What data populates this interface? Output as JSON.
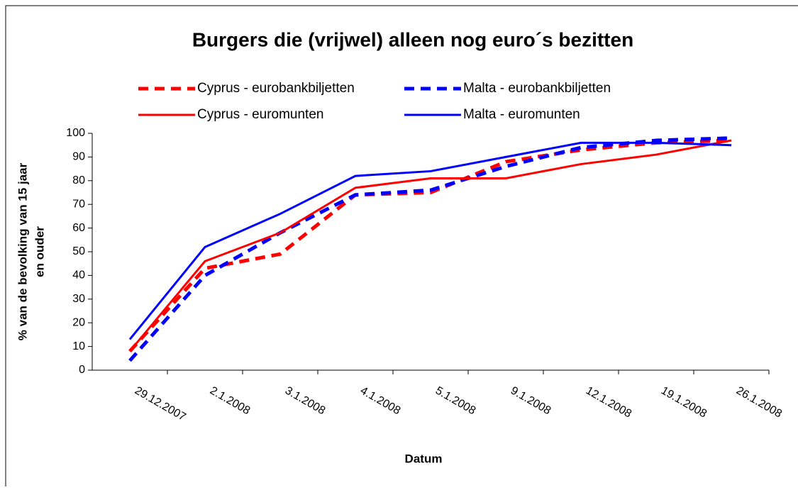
{
  "chart_data": {
    "type": "line",
    "title": "Burgers die (vrijwel) alleen nog euro´s bezitten",
    "x_label": "Datum",
    "y_label": [
      "% van de bevolking van 15 jaar",
      "en ouder"
    ],
    "categories": [
      "29.12.2007",
      "2.1.2008",
      "3.1.2008",
      "4.1.2008",
      "5.1.2008",
      "9.1.2008",
      "12.1.2008",
      "19.1.2008",
      "26.1.2008"
    ],
    "series": [
      {
        "name": "Cyprus - eurobankbiljetten",
        "color": "#ff0000",
        "style": "dashed",
        "values": [
          8,
          43,
          49,
          74,
          75,
          88,
          93,
          96,
          97
        ]
      },
      {
        "name": "Malta - eurobankbiljetten",
        "color": "#0000ff",
        "style": "dashed",
        "values": [
          4,
          40,
          58,
          74,
          76,
          86,
          94,
          97,
          98
        ]
      },
      {
        "name": "Cyprus - euromunten",
        "color": "#ff0000",
        "style": "solid",
        "values": [
          8,
          46,
          58,
          77,
          81,
          81,
          87,
          91,
          97
        ]
      },
      {
        "name": "Malta - euromunten",
        "color": "#0000ff",
        "style": "solid",
        "values": [
          13,
          52,
          66,
          82,
          84,
          90,
          96,
          96,
          95
        ]
      }
    ],
    "ylim": [
      0,
      100
    ],
    "yticks": [
      0,
      10,
      20,
      30,
      40,
      50,
      60,
      70,
      80,
      90,
      100
    ],
    "grid": false
  }
}
